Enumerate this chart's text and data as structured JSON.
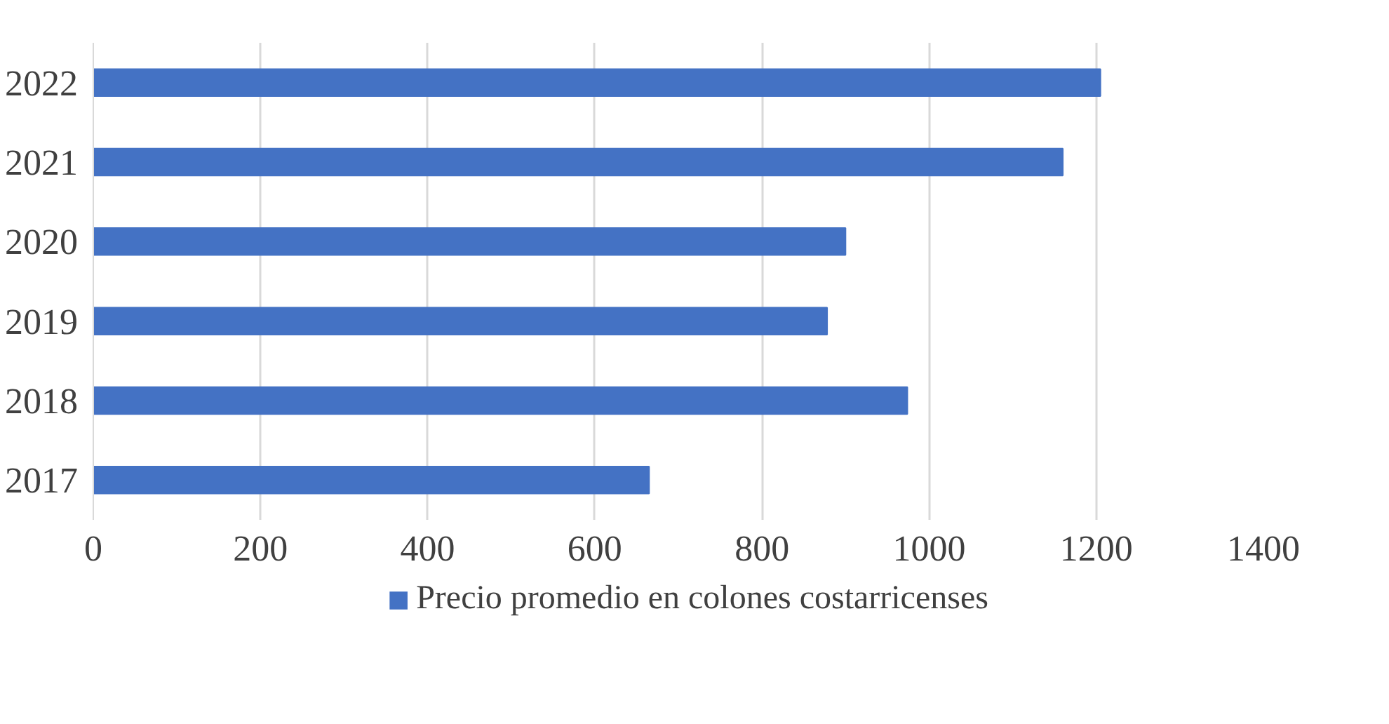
{
  "chart_data": {
    "type": "bar",
    "orientation": "horizontal",
    "categories": [
      "2022",
      "2021",
      "2020",
      "2019",
      "2018",
      "2017"
    ],
    "series": [
      {
        "name": "Precio promedio en colones costarricenses",
        "color": "#4472c4",
        "values": [
          1205,
          1160,
          900,
          878,
          974,
          665
        ]
      }
    ],
    "xlim": [
      0,
      1400
    ],
    "xticks": [
      0,
      200,
      400,
      600,
      800,
      1000,
      1200,
      1400
    ],
    "grid": "x",
    "legend": "bottom"
  }
}
